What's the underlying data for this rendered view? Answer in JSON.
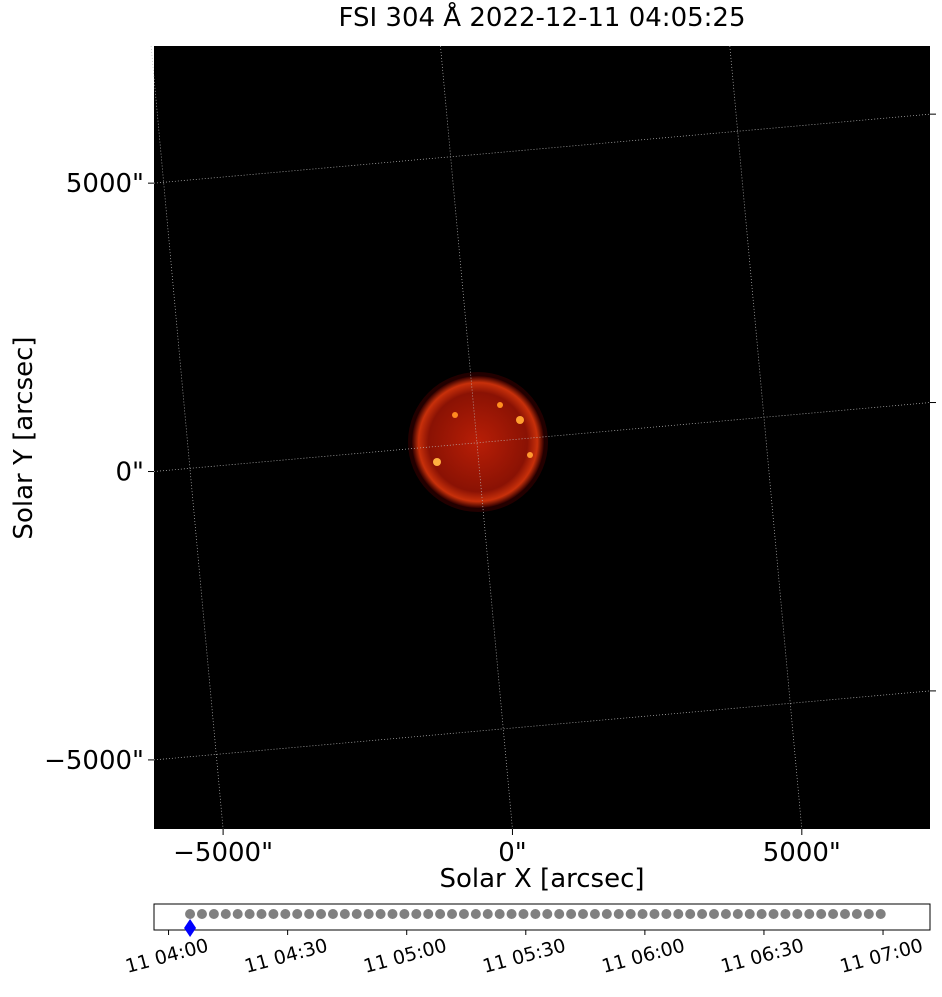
{
  "chart_data": [
    {
      "type": "image",
      "title": "FSI 304 Å 2022-12-11 04:05:25",
      "xlabel": "Solar X [arcsec]",
      "ylabel": "Solar Y [arcsec]",
      "xlim": [
        -6194,
        7215
      ],
      "ylim": [
        -6198,
        7378
      ],
      "xticks": [
        {
          "value": -5000,
          "label": "−5000\""
        },
        {
          "value": 0,
          "label": "0\""
        },
        {
          "value": 5000,
          "label": "5000\""
        }
      ],
      "yticks": [
        {
          "value": -5000,
          "label": "−5000\""
        },
        {
          "value": 0,
          "label": "0\""
        },
        {
          "value": 5000,
          "label": "5000\""
        }
      ],
      "grid": true
    },
    {
      "type": "timeline",
      "x": [
        "04:05:25",
        "04:08:25",
        "04:11:25",
        "04:14:25",
        "04:17:25",
        "04:20:25",
        "04:23:25",
        "04:26:25",
        "04:29:25",
        "04:32:25",
        "04:35:25",
        "04:38:25",
        "04:41:25",
        "04:44:25",
        "04:47:25",
        "04:50:25",
        "04:53:25",
        "04:56:25",
        "04:59:25",
        "05:02:25",
        "05:05:25",
        "05:08:25",
        "05:11:25",
        "05:14:25",
        "05:17:25",
        "05:20:25",
        "05:23:25",
        "05:26:25",
        "05:29:25",
        "05:32:25",
        "05:35:25",
        "05:38:25",
        "05:41:25",
        "05:44:25",
        "05:47:25",
        "05:50:25",
        "05:53:25",
        "05:56:25",
        "05:59:25",
        "06:02:25",
        "06:05:25",
        "06:08:25",
        "06:11:25",
        "06:14:25",
        "06:17:25",
        "06:20:25",
        "06:23:25",
        "06:26:25",
        "06:29:25",
        "06:32:25",
        "06:35:25",
        "06:38:25",
        "06:41:25",
        "06:44:25",
        "06:47:25",
        "06:50:25",
        "06:53:25",
        "06:56:25",
        "06:59:25"
      ],
      "color": "#808080",
      "current": "04:05:25",
      "current_color": "#0000ff",
      "xlim": [
        "03:56:20",
        "07:11:50"
      ],
      "xticks": [
        {
          "value": "04:00:00",
          "label": "11 04:00"
        },
        {
          "value": "04:30:00",
          "label": "11 04:30"
        },
        {
          "value": "05:00:00",
          "label": "11 05:00"
        },
        {
          "value": "05:30:00",
          "label": "11 05:30"
        },
        {
          "value": "06:00:00",
          "label": "11 06:00"
        },
        {
          "value": "06:30:00",
          "label": "11 06:30"
        },
        {
          "value": "07:00:00",
          "label": "11 07:00"
        }
      ]
    }
  ]
}
